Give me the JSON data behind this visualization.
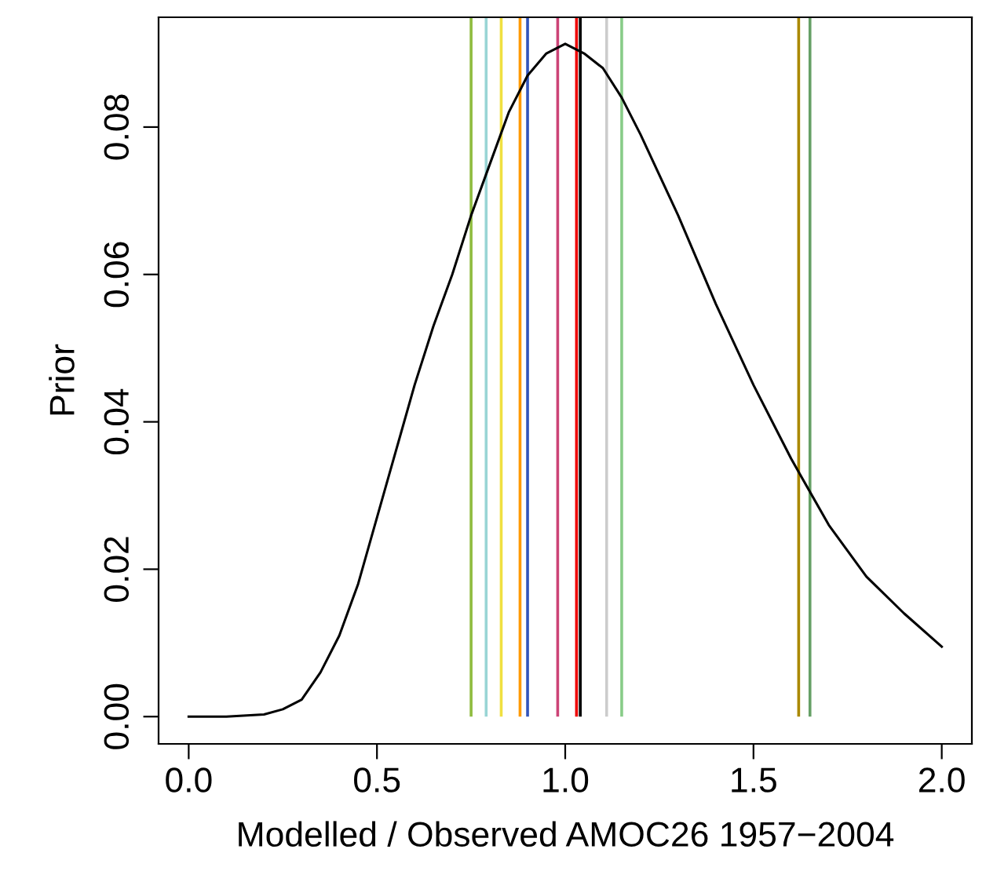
{
  "chart_data": {
    "type": "line",
    "xlabel": "Modelled / Observed AMOC26 1957−2004",
    "ylabel": "Prior",
    "series": [
      {
        "color": "#000000",
        "x": [
          0,
          0.1,
          0.2,
          0.25,
          0.3,
          0.35,
          0.4,
          0.45,
          0.5,
          0.55,
          0.6,
          0.65,
          0.7,
          0.75,
          0.8,
          0.85,
          0.9,
          0.95,
          1.0,
          1.05,
          1.1,
          1.15,
          1.2,
          1.3,
          1.4,
          1.5,
          1.6,
          1.7,
          1.8,
          1.9,
          2.0
        ],
        "values": [
          0,
          0,
          0.0003,
          0.001,
          0.0023,
          0.006,
          0.011,
          0.018,
          0.027,
          0.036,
          0.045,
          0.053,
          0.06,
          0.068,
          0.075,
          0.082,
          0.087,
          0.09,
          0.0913,
          0.09,
          0.088,
          0.084,
          0.079,
          0.068,
          0.056,
          0.045,
          0.035,
          0.026,
          0.019,
          0.014,
          0.0095
        ]
      }
    ],
    "ref_lines": [
      {
        "axis": "x",
        "value": 0.75,
        "color": "#8fbc3f"
      },
      {
        "axis": "x",
        "value": 0.79,
        "color": "#99d5d5"
      },
      {
        "axis": "x",
        "value": 0.83,
        "color": "#f0e040"
      },
      {
        "axis": "x",
        "value": 0.88,
        "color": "#ff9900"
      },
      {
        "axis": "x",
        "value": 0.9,
        "color": "#3355bb"
      },
      {
        "axis": "x",
        "value": 0.98,
        "color": "#cc4477"
      },
      {
        "axis": "x",
        "value": 1.03,
        "color": "#ee0000"
      },
      {
        "axis": "x",
        "value": 1.04,
        "color": "#000000"
      },
      {
        "axis": "x",
        "value": 1.11,
        "color": "#cccccc"
      },
      {
        "axis": "x",
        "value": 1.15,
        "color": "#88cc88"
      },
      {
        "axis": "x",
        "value": 1.62,
        "color": "#aa8800"
      },
      {
        "axis": "x",
        "value": 1.65,
        "color": "#66a066"
      }
    ],
    "xlim": [
      -0.08,
      2.08
    ],
    "ylim": [
      -0.0037,
      0.0949
    ],
    "xticks": [
      {
        "value": 0,
        "label": "0.0"
      },
      {
        "value": 0.5,
        "label": "0.5"
      },
      {
        "value": 1,
        "label": "1.0"
      },
      {
        "value": 1.5,
        "label": "1.5"
      },
      {
        "value": 2,
        "label": "2.0"
      }
    ],
    "yticks": [
      {
        "value": 0,
        "label": "0.00"
      },
      {
        "value": 0.02,
        "label": "0.02"
      },
      {
        "value": 0.04,
        "label": "0.04"
      },
      {
        "value": 0.06,
        "label": "0.06"
      },
      {
        "value": 0.08,
        "label": "0.08"
      }
    ],
    "grid": false,
    "marker": "none",
    "line_style": "solid"
  }
}
